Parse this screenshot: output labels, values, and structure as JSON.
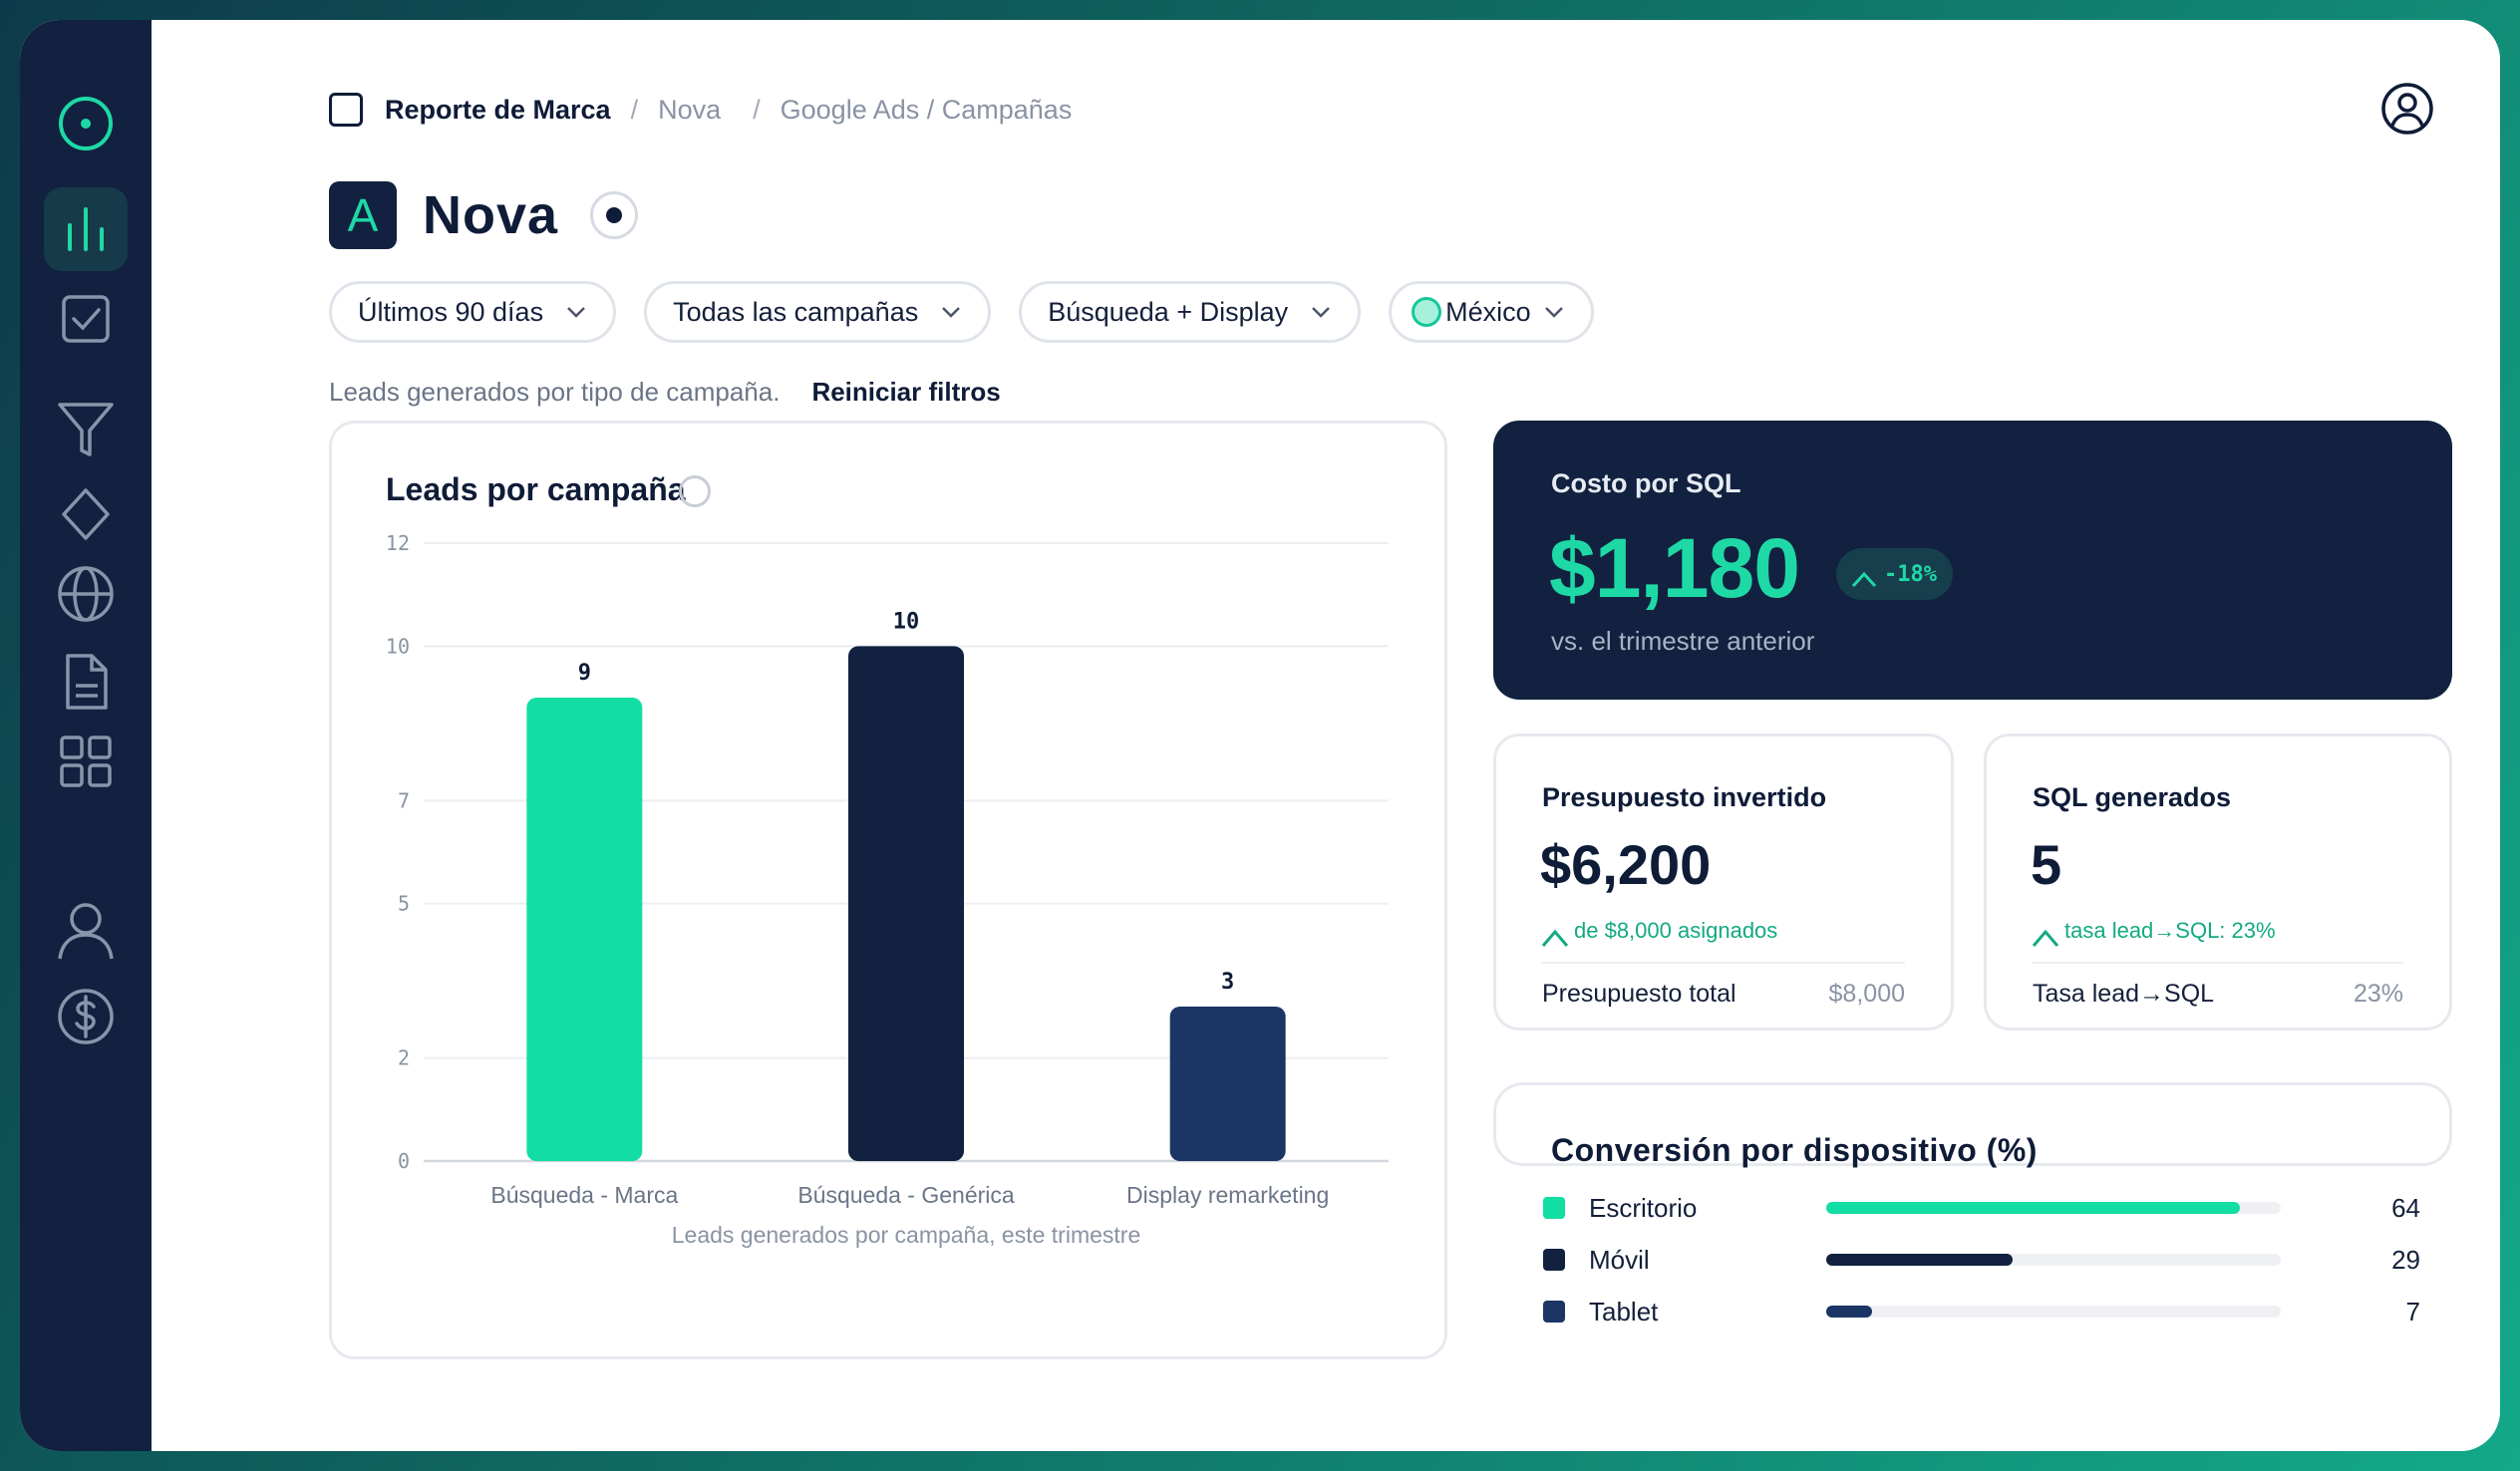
{
  "breadcrumb": {
    "brand": "Reporte de Marca",
    "client": "Nova",
    "section": "Google Ads / Campañas"
  },
  "header": {
    "title": "Nova",
    "logo_letter": "A"
  },
  "filters": {
    "period": "Últimos 90 días",
    "campaigns": "Todas las campañas",
    "network": "Búsqueda + Display",
    "country": "México"
  },
  "subline": {
    "text": "Leads generados por tipo de campaña.",
    "reset": "Reiniciar filtros"
  },
  "sidebar": {
    "icons": [
      "target-icon",
      "bar-chart-icon",
      "checkbox-icon",
      "funnel-icon",
      "diamond-icon",
      "globe-icon",
      "document-icon",
      "grid-icon",
      "user-icon",
      "dollar-icon"
    ]
  },
  "chart_card": {
    "title": "Leads por campaña"
  },
  "chart_data": {
    "type": "bar",
    "title": "Leads por campaña",
    "categories": [
      "Búsqueda - Marca",
      "Búsqueda - Genérica",
      "Display remarketing"
    ],
    "values": [
      9,
      10,
      3
    ],
    "colors": [
      "#12dda3",
      "#11213f",
      "#1b3564"
    ],
    "yticks": [
      0,
      2,
      5,
      7,
      10,
      12
    ],
    "ylim": [
      0,
      12
    ],
    "xlabel": "Leads generados por campaña, este trimestre",
    "ylabel": "",
    "grid": true
  },
  "cost_card": {
    "label": "Costo por SQL",
    "value": "$1,180",
    "badge": "-18%",
    "sub": "vs. el trimestre anterior"
  },
  "budget_card": {
    "label": "Presupuesto invertido",
    "value": "$6,200",
    "delta": "de $8,000 asignados",
    "foot_label": "Presupuesto total",
    "foot_value": "$8,000"
  },
  "sql_card": {
    "label": "SQL generados",
    "value": "5",
    "delta": "tasa lead→SQL: 23%",
    "foot_label": "Tasa lead→SQL",
    "foot_value": "23%"
  },
  "conversion": {
    "title": "Conversión por dispositivo (%)",
    "rows": [
      {
        "name": "Escritorio",
        "value": "64",
        "pct": 0.91,
        "color": "#12dda3"
      },
      {
        "name": "Móvil",
        "value": "29",
        "pct": 0.41,
        "color": "#11213f"
      },
      {
        "name": "Tablet",
        "value": "7",
        "pct": 0.1,
        "color": "#1b3564"
      }
    ]
  },
  "colors": {
    "accent": "#1ed9a6",
    "navy": "#11213f",
    "blue": "#1b3564"
  }
}
